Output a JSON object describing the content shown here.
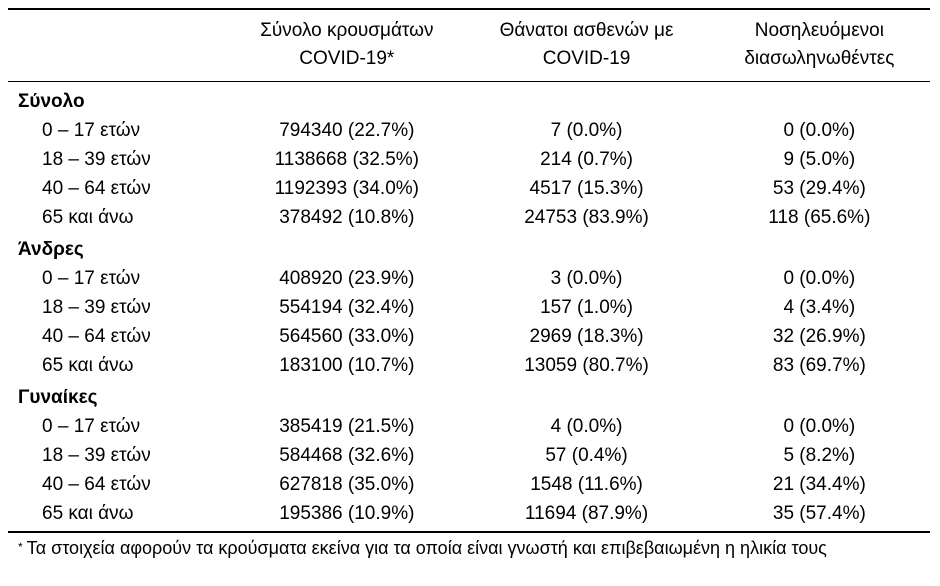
{
  "header": {
    "columns": [
      {
        "line1": "Σύνολο κρουσμάτων",
        "line2": "COVID-19*"
      },
      {
        "line1": "Θάνατοι ασθενών με",
        "line2": "COVID-19"
      },
      {
        "line1": "Νοσηλευόμενοι",
        "line2": "διασωληνωθέντες"
      }
    ]
  },
  "sections": [
    {
      "label": "Σύνολο",
      "rows": [
        {
          "label": "0 – 17 ετών",
          "cases": "794340 (22.7%)",
          "deaths": "7 (0.0%)",
          "intubated": "0 (0.0%)"
        },
        {
          "label": "18 – 39 ετών",
          "cases": "1138668 (32.5%)",
          "deaths": "214 (0.7%)",
          "intubated": "9 (5.0%)"
        },
        {
          "label": "40 – 64 ετών",
          "cases": "1192393 (34.0%)",
          "deaths": "4517 (15.3%)",
          "intubated": "53 (29.4%)"
        },
        {
          "label": "65 και άνω",
          "cases": "378492 (10.8%)",
          "deaths": "24753 (83.9%)",
          "intubated": "118 (65.6%)"
        }
      ]
    },
    {
      "label": "Άνδρες",
      "rows": [
        {
          "label": "0 – 17 ετών",
          "cases": "408920 (23.9%)",
          "deaths": "3 (0.0%)",
          "intubated": "0 (0.0%)"
        },
        {
          "label": "18 – 39 ετών",
          "cases": "554194 (32.4%)",
          "deaths": "157 (1.0%)",
          "intubated": "4 (3.4%)"
        },
        {
          "label": "40 – 64 ετών",
          "cases": "564560 (33.0%)",
          "deaths": "2969 (18.3%)",
          "intubated": "32 (26.9%)"
        },
        {
          "label": "65 και άνω",
          "cases": "183100 (10.7%)",
          "deaths": "13059 (80.7%)",
          "intubated": "83 (69.7%)"
        }
      ]
    },
    {
      "label": "Γυναίκες",
      "rows": [
        {
          "label": "0 – 17 ετών",
          "cases": "385419 (21.5%)",
          "deaths": "4 (0.0%)",
          "intubated": "0 (0.0%)"
        },
        {
          "label": "18 – 39 ετών",
          "cases": "584468 (32.6%)",
          "deaths": "57 (0.4%)",
          "intubated": "5 (8.2%)"
        },
        {
          "label": "40 – 64 ετών",
          "cases": "627818 (35.0%)",
          "deaths": "1548 (11.6%)",
          "intubated": "21 (34.4%)"
        },
        {
          "label": "65 και άνω",
          "cases": "195386 (10.9%)",
          "deaths": "11694 (87.9%)",
          "intubated": "35 (57.4%)"
        }
      ]
    }
  ],
  "footnote": {
    "marker": "*",
    "text": "Τα στοιχεία αφορούν τα κρούσματα εκείνα για τα οποία είναι γνωστή και επιβεβαιωμένη η ηλικία τους"
  },
  "colors": {
    "text": "#000000",
    "rule": "#000000",
    "background": "#ffffff"
  }
}
